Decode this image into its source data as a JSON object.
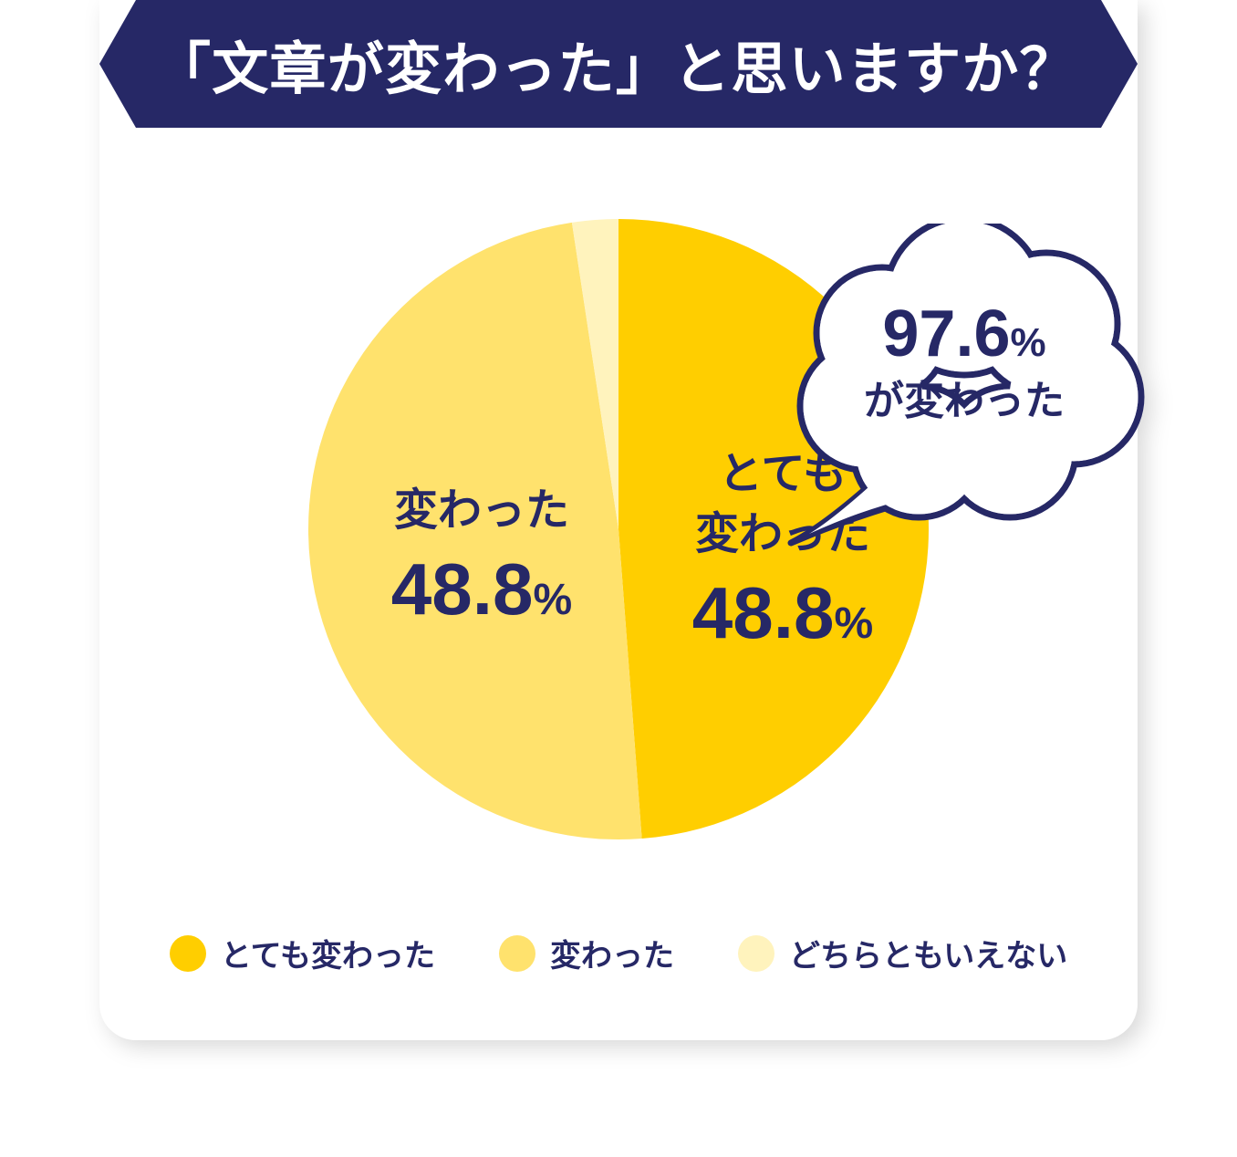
{
  "title": "「文章が変わった」と思いますか？",
  "banner_color": "#262866",
  "text_color": "#262866",
  "background_color": "#ffffff",
  "pie": {
    "type": "pie",
    "radius": 340,
    "slices": [
      {
        "key": "very_changed",
        "label": "とても\n変わった",
        "value": 48.8,
        "color": "#ffce00",
        "start_deg": 0,
        "end_deg": 175.68
      },
      {
        "key": "changed",
        "label": "変わった",
        "value": 48.8,
        "color": "#ffe26d",
        "start_deg": 175.68,
        "end_deg": 351.36
      },
      {
        "key": "neutral",
        "label": "どちらともいえない",
        "value": 2.4,
        "color": "#fff3bd",
        "start_deg": 351.36,
        "end_deg": 360
      }
    ],
    "label_fontsize_name": 48,
    "label_fontsize_value": 80,
    "label_fontsize_pct": 48
  },
  "slice_labels": {
    "right": {
      "line1": "とても",
      "line2": "変わった",
      "value": "48.8",
      "pct": "%"
    },
    "left": {
      "line1": "変わった",
      "value": "48.8",
      "pct": "%"
    }
  },
  "callout": {
    "value": "97.6",
    "pct_symbol": "%",
    "subtext": "が変わった",
    "stroke_color": "#262866",
    "fill_color": "#ffffff",
    "stroke_width": 7,
    "big_fontsize": 72,
    "sub_fontsize": 44
  },
  "legend": {
    "items": [
      {
        "label": "とても変わった",
        "color": "#ffce00"
      },
      {
        "label": "変わった",
        "color": "#ffe26d"
      },
      {
        "label": "どちらともいえない",
        "color": "#fff3bd"
      }
    ],
    "fontsize": 34
  }
}
